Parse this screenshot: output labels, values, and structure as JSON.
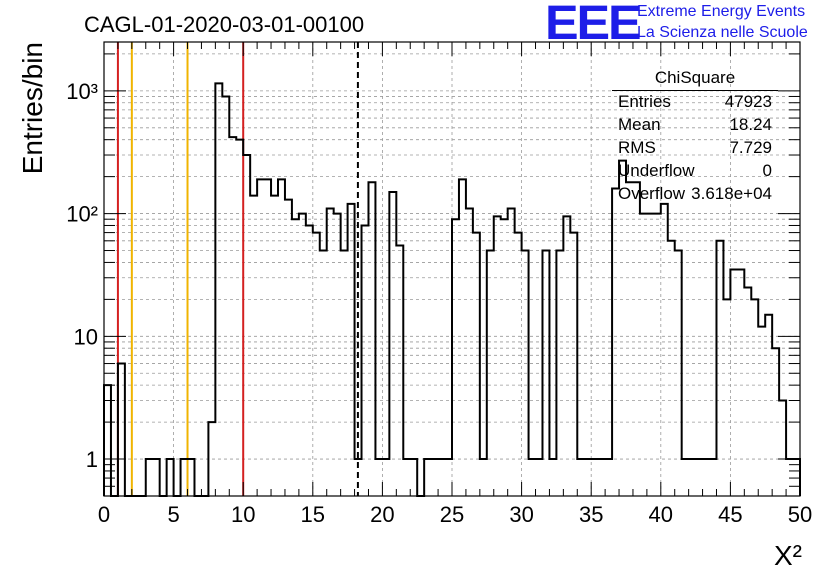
{
  "plot_title": "CAGL-01-2020-03-01-00100",
  "logo": {
    "mark": "EEE",
    "line1": "Extreme Energy Events",
    "line2": "La Scienza nelle Scuole"
  },
  "stats": {
    "title": "ChiSquare",
    "rows": [
      {
        "label": "Entries",
        "value": "47923"
      },
      {
        "label": "Mean",
        "value": "18.24"
      },
      {
        "label": "RMS",
        "value": "7.729"
      },
      {
        "label": "Underflow",
        "value": "0"
      },
      {
        "label": "Overflow",
        "value": "3.618e+04"
      }
    ]
  },
  "colors": {
    "histogram": "#000000",
    "red_lines": "#d42020",
    "yellow_lines": "#f0b400",
    "mean_line": "#000000"
  },
  "chart_data": {
    "type": "histogram",
    "title": "CAGL-01-2020-03-01-00100",
    "xlabel": "X²",
    "ylabel": "Entries/bin",
    "xlim": [
      0,
      50
    ],
    "ylim": [
      0.5,
      2500
    ],
    "yscale": "log",
    "grid": true,
    "bin_width": 0.5,
    "x_ticks": [
      "0",
      "5",
      "10",
      "15",
      "20",
      "25",
      "30",
      "35",
      "40",
      "45",
      "50"
    ],
    "y_ticks": [
      {
        "value": 1,
        "label": "1"
      },
      {
        "value": 10,
        "label": "10"
      },
      {
        "value": 100,
        "label": "10²"
      },
      {
        "value": 1000,
        "label": "10³"
      }
    ],
    "bin_counts": [
      4,
      0,
      6,
      0,
      0,
      0,
      1,
      1,
      0,
      1,
      0,
      1,
      1,
      0,
      0,
      2,
      1150,
      900,
      420,
      400,
      300,
      140,
      190,
      190,
      140,
      190,
      130,
      90,
      100,
      80,
      70,
      50,
      110,
      100,
      50,
      120,
      1,
      80,
      180,
      1,
      1,
      150,
      55,
      1,
      1,
      0,
      1,
      1,
      1,
      1,
      90,
      190,
      110,
      70,
      1,
      50,
      95,
      90,
      110,
      70,
      50,
      1,
      1,
      50,
      1,
      50,
      95,
      70,
      1,
      1,
      1,
      1,
      1,
      160,
      270,
      180,
      180,
      100,
      100,
      100,
      120,
      60,
      50,
      1,
      1,
      1,
      1,
      1,
      60,
      20,
      35,
      35,
      25,
      20,
      12,
      15,
      8,
      3,
      1,
      1
    ],
    "vertical_lines": [
      {
        "x": 1,
        "color": "red"
      },
      {
        "x": 2,
        "color": "yellow"
      },
      {
        "x": 6,
        "color": "yellow"
      },
      {
        "x": 10,
        "color": "red"
      },
      {
        "x": 18.24,
        "color": "black",
        "style": "dashed",
        "meaning": "mean"
      }
    ]
  }
}
